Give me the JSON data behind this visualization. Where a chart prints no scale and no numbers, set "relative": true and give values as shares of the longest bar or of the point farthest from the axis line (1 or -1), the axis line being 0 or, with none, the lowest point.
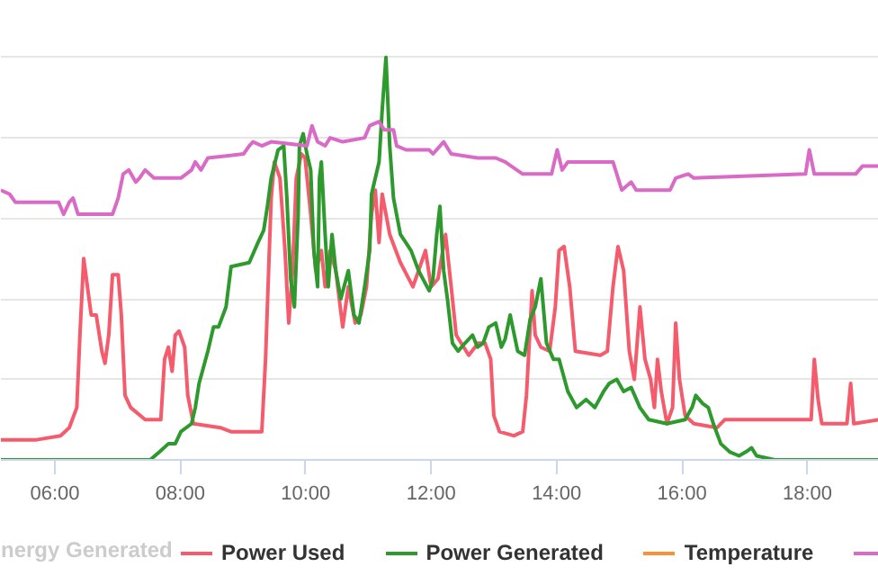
{
  "chart_data": {
    "type": "line",
    "relative": true,
    "xlim": [
      5.14,
      19.14
    ],
    "xticks": [
      {
        "value": 6,
        "label": "06:00"
      },
      {
        "value": 8,
        "label": "08:00"
      },
      {
        "value": 10,
        "label": "10:00"
      },
      {
        "value": 12,
        "label": "12:00"
      },
      {
        "value": 14,
        "label": "14:00"
      },
      {
        "value": 16,
        "label": "16:00"
      },
      {
        "value": 18,
        "label": "18:00"
      }
    ],
    "grid": "y",
    "legend": "bottom",
    "tick_labels": "x",
    "marker": "none",
    "line_style": "solid",
    "annotations": [
      "nergy Generated"
    ],
    "series": [
      {
        "name": "Power Used",
        "color": "#f45b6c",
        "x": [
          5.14,
          5.71,
          6.09,
          6.23,
          6.35,
          6.4,
          6.46,
          6.52,
          6.58,
          6.66,
          6.75,
          6.8,
          6.86,
          6.92,
          7.01,
          7.06,
          7.12,
          7.21,
          7.44,
          7.69,
          7.75,
          7.81,
          7.87,
          7.92,
          7.98,
          8.07,
          8.12,
          8.21,
          8.64,
          8.81,
          9.3,
          9.36,
          9.42,
          9.45,
          9.5,
          9.59,
          9.67,
          9.73,
          9.79,
          9.85,
          9.93,
          9.99,
          10.08,
          10.16,
          10.25,
          10.31,
          10.39,
          10.48,
          10.59,
          10.68,
          10.79,
          10.88,
          10.97,
          11.05,
          11.11,
          11.17,
          11.22,
          11.34,
          11.51,
          11.71,
          11.8,
          11.91,
          12.0,
          12.11,
          12.23,
          12.32,
          12.4,
          12.52,
          12.6,
          12.75,
          12.86,
          12.95,
          13.0,
          13.09,
          13.32,
          13.46,
          13.52,
          13.61,
          13.66,
          13.75,
          13.89,
          13.98,
          14.04,
          14.12,
          14.21,
          14.3,
          14.7,
          14.81,
          14.9,
          14.98,
          15.07,
          15.16,
          15.24,
          15.33,
          15.41,
          15.5,
          15.56,
          15.61,
          15.67,
          15.76,
          15.85,
          15.9,
          15.96,
          16.05,
          16.19,
          16.56,
          16.68,
          18.06,
          18.11,
          18.17,
          18.23,
          18.63,
          18.69,
          18.74,
          19.14
        ],
        "values": [
          0.05,
          0.05,
          0.06,
          0.08,
          0.13,
          0.31,
          0.5,
          0.43,
          0.36,
          0.36,
          0.27,
          0.24,
          0.31,
          0.46,
          0.46,
          0.36,
          0.16,
          0.13,
          0.1,
          0.1,
          0.25,
          0.28,
          0.22,
          0.31,
          0.32,
          0.28,
          0.16,
          0.09,
          0.08,
          0.07,
          0.07,
          0.25,
          0.52,
          0.65,
          0.74,
          0.7,
          0.52,
          0.34,
          0.47,
          0.7,
          0.76,
          0.75,
          0.61,
          0.47,
          0.52,
          0.43,
          0.52,
          0.47,
          0.33,
          0.43,
          0.34,
          0.36,
          0.43,
          0.61,
          0.67,
          0.54,
          0.66,
          0.56,
          0.49,
          0.43,
          0.47,
          0.52,
          0.43,
          0.45,
          0.56,
          0.43,
          0.31,
          0.28,
          0.26,
          0.29,
          0.29,
          0.25,
          0.11,
          0.07,
          0.06,
          0.07,
          0.16,
          0.42,
          0.31,
          0.28,
          0.27,
          0.38,
          0.52,
          0.53,
          0.43,
          0.27,
          0.26,
          0.27,
          0.43,
          0.53,
          0.47,
          0.27,
          0.2,
          0.38,
          0.25,
          0.2,
          0.13,
          0.25,
          0.17,
          0.09,
          0.13,
          0.34,
          0.2,
          0.11,
          0.09,
          0.08,
          0.1,
          0.1,
          0.25,
          0.15,
          0.09,
          0.09,
          0.19,
          0.09,
          0.1
        ]
      },
      {
        "name": "Power Generated",
        "color": "#2e9a2e",
        "x": [
          5.14,
          7.52,
          7.67,
          7.81,
          7.92,
          8.01,
          8.18,
          8.24,
          8.3,
          8.44,
          8.53,
          8.61,
          8.73,
          8.81,
          9.1,
          9.24,
          9.33,
          9.39,
          9.45,
          9.56,
          9.65,
          9.7,
          9.76,
          9.82,
          9.88,
          9.9,
          9.96,
          10.02,
          10.08,
          10.13,
          10.19,
          10.22,
          10.25,
          10.31,
          10.36,
          10.42,
          10.48,
          10.56,
          10.68,
          10.77,
          10.85,
          10.94,
          11.02,
          11.05,
          11.17,
          11.22,
          11.28,
          11.34,
          11.4,
          11.51,
          11.68,
          11.8,
          11.97,
          12.03,
          12.09,
          12.14,
          12.2,
          12.26,
          12.34,
          12.43,
          12.54,
          12.66,
          12.74,
          12.83,
          12.92,
          13.03,
          13.12,
          13.18,
          13.26,
          13.38,
          13.49,
          13.58,
          13.66,
          13.75,
          13.84,
          13.95,
          14.04,
          14.18,
          14.32,
          14.47,
          14.61,
          14.75,
          14.84,
          14.96,
          15.07,
          15.19,
          15.33,
          15.47,
          15.76,
          16.05,
          16.16,
          16.22,
          16.33,
          16.42,
          16.5,
          16.62,
          16.76,
          16.91,
          17.02,
          17.11,
          17.19,
          17.48,
          19.14
        ],
        "values": [
          0.0,
          0.0,
          0.02,
          0.04,
          0.04,
          0.07,
          0.09,
          0.13,
          0.19,
          0.27,
          0.33,
          0.33,
          0.38,
          0.48,
          0.49,
          0.54,
          0.57,
          0.63,
          0.7,
          0.77,
          0.78,
          0.65,
          0.45,
          0.38,
          0.61,
          0.78,
          0.81,
          0.76,
          0.72,
          0.52,
          0.43,
          0.7,
          0.74,
          0.56,
          0.43,
          0.56,
          0.47,
          0.4,
          0.47,
          0.36,
          0.34,
          0.43,
          0.52,
          0.66,
          0.74,
          0.87,
          1.0,
          0.78,
          0.65,
          0.56,
          0.52,
          0.47,
          0.42,
          0.45,
          0.56,
          0.63,
          0.47,
          0.4,
          0.29,
          0.27,
          0.29,
          0.31,
          0.28,
          0.29,
          0.33,
          0.34,
          0.28,
          0.3,
          0.36,
          0.27,
          0.26,
          0.35,
          0.38,
          0.45,
          0.29,
          0.25,
          0.25,
          0.17,
          0.13,
          0.15,
          0.13,
          0.17,
          0.19,
          0.2,
          0.17,
          0.18,
          0.13,
          0.1,
          0.09,
          0.1,
          0.13,
          0.16,
          0.14,
          0.13,
          0.09,
          0.04,
          0.02,
          0.01,
          0.02,
          0.03,
          0.01,
          0.0,
          0.0
        ]
      },
      {
        "name": "Temperature",
        "color": "#f7923a"
      },
      {
        "color": "#d96bc6",
        "x": [
          5.14,
          5.28,
          5.37,
          5.86,
          6.06,
          6.14,
          6.23,
          6.29,
          6.37,
          6.43,
          6.92,
          7.01,
          7.09,
          7.18,
          7.29,
          7.35,
          7.44,
          7.58,
          8.01,
          8.18,
          8.24,
          8.33,
          8.44,
          9.01,
          9.1,
          9.16,
          9.3,
          9.45,
          10.02,
          10.1,
          10.19,
          10.31,
          10.39,
          10.59,
          10.94,
          11.02,
          11.17,
          11.25,
          11.4,
          11.45,
          11.6,
          11.97,
          12.03,
          12.2,
          12.32,
          12.74,
          13.03,
          13.18,
          13.46,
          13.92,
          14.01,
          14.09,
          14.18,
          14.9,
          15.04,
          15.19,
          15.27,
          15.33,
          15.81,
          15.9,
          16.1,
          16.19,
          17.97,
          18.03,
          18.11,
          18.77,
          18.88,
          19.14
        ],
        "values": [
          0.67,
          0.66,
          0.64,
          0.64,
          0.64,
          0.61,
          0.64,
          0.65,
          0.61,
          0.61,
          0.61,
          0.65,
          0.71,
          0.72,
          0.69,
          0.7,
          0.72,
          0.7,
          0.7,
          0.72,
          0.74,
          0.72,
          0.75,
          0.76,
          0.78,
          0.79,
          0.78,
          0.79,
          0.78,
          0.83,
          0.79,
          0.78,
          0.8,
          0.79,
          0.8,
          0.83,
          0.84,
          0.82,
          0.82,
          0.78,
          0.77,
          0.77,
          0.76,
          0.79,
          0.76,
          0.75,
          0.75,
          0.74,
          0.71,
          0.71,
          0.77,
          0.72,
          0.74,
          0.74,
          0.67,
          0.69,
          0.67,
          0.67,
          0.67,
          0.7,
          0.71,
          0.7,
          0.71,
          0.77,
          0.71,
          0.71,
          0.73,
          0.73
        ]
      }
    ]
  }
}
